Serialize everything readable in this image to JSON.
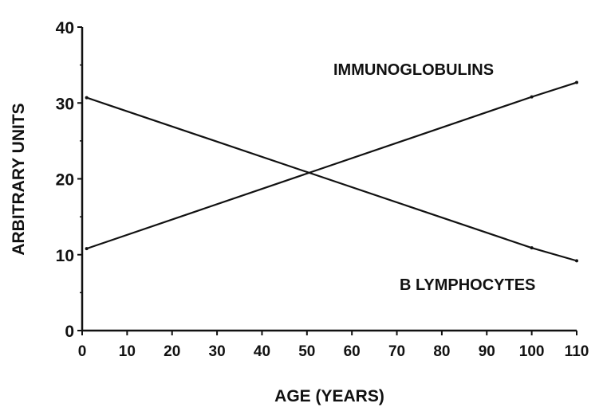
{
  "chart_data": {
    "type": "line",
    "title": "",
    "xlabel": "AGE (YEARS)",
    "ylabel": "ARBITRARY UNITS",
    "xlim": [
      0,
      110
    ],
    "ylim": [
      0,
      40
    ],
    "xticks": [
      0,
      10,
      20,
      30,
      40,
      50,
      60,
      70,
      80,
      90,
      100,
      110
    ],
    "yticks": [
      0,
      10,
      20,
      30,
      40
    ],
    "grid": false,
    "series": [
      {
        "name": "IMMUNOGLOBULINS",
        "x": [
          1,
          100,
          110
        ],
        "y": [
          10.8,
          30.8,
          32.7
        ],
        "color": "#111111"
      },
      {
        "name": "B LYMPHOCYTES",
        "x": [
          1,
          100,
          110
        ],
        "y": [
          30.7,
          10.9,
          9.2
        ],
        "color": "#111111"
      }
    ]
  }
}
